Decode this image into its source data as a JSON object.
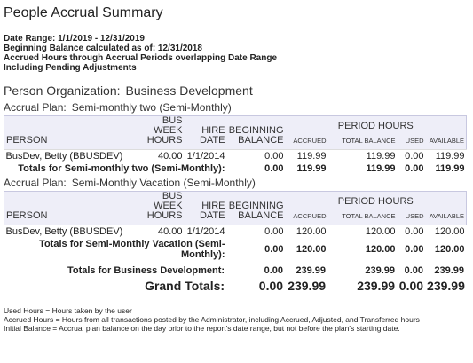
{
  "header": {
    "title": "People Accrual Summary",
    "lines": [
      "Date Range: 1/1/2019 - 12/31/2019",
      "Beginning Balance calculated as of: 12/31/2018",
      "Accrued Hours through Accrual Periods overlapping Date Range",
      "Including Pending Adjustments"
    ]
  },
  "organization": {
    "label": "Person Organization:",
    "name": "Business Development"
  },
  "columns": {
    "person": "PERSON",
    "bus_week_hours": "BUS WEEK HOURS",
    "hire_date": "HIRE DATE",
    "beginning_balance": "BEGINNING BALANCE",
    "period_hours": "PERIOD HOURS",
    "accrued": "ACCRUED",
    "total_balance": "TOTAL BALANCE",
    "used": "USED",
    "available": "AVAILABLE"
  },
  "plans": [
    {
      "label": "Accrual Plan:",
      "name": "Semi-monthly two (Semi-Monthly)",
      "rows": [
        [
          "BusDev, Betty (BBUSDEV)",
          "40.00",
          "1/1/2014",
          "0.00",
          "119.99",
          "119.99",
          "0.00",
          "119.99"
        ]
      ],
      "totals": [
        "Totals for Semi-monthly two (Semi-Monthly):",
        "0.00",
        "119.99",
        "119.99",
        "0.00",
        "119.99"
      ]
    },
    {
      "label": "Accrual Plan:",
      "name": "Semi-Monthly Vacation (Semi-Monthly)",
      "rows": [
        [
          "BusDev, Betty (BBUSDEV)",
          "40.00",
          "1/1/2014",
          "0.00",
          "120.00",
          "120.00",
          "0.00",
          "120.00"
        ]
      ],
      "totals": [
        "Totals for Semi-Monthly Vacation (Semi-Monthly):",
        "0.00",
        "120.00",
        "120.00",
        "0.00",
        "120.00"
      ]
    }
  ],
  "org_totals": [
    "Totals for Business Development:",
    "0.00",
    "239.99",
    "239.99",
    "0.00",
    "239.99"
  ],
  "grand_totals": [
    "Grand Totals:",
    "0.00",
    "239.99",
    "239.99",
    "0.00",
    "239.99"
  ],
  "notes": [
    "Used Hours = Hours taken by the user",
    "Accrued Hours = Hours from all transactions posted by the Administrator, including Accrued, Adjusted, and Transferred hours",
    "Initial Balance = Accrual plan balance on the day prior to the report's date range, but not before the plan's starting date."
  ]
}
